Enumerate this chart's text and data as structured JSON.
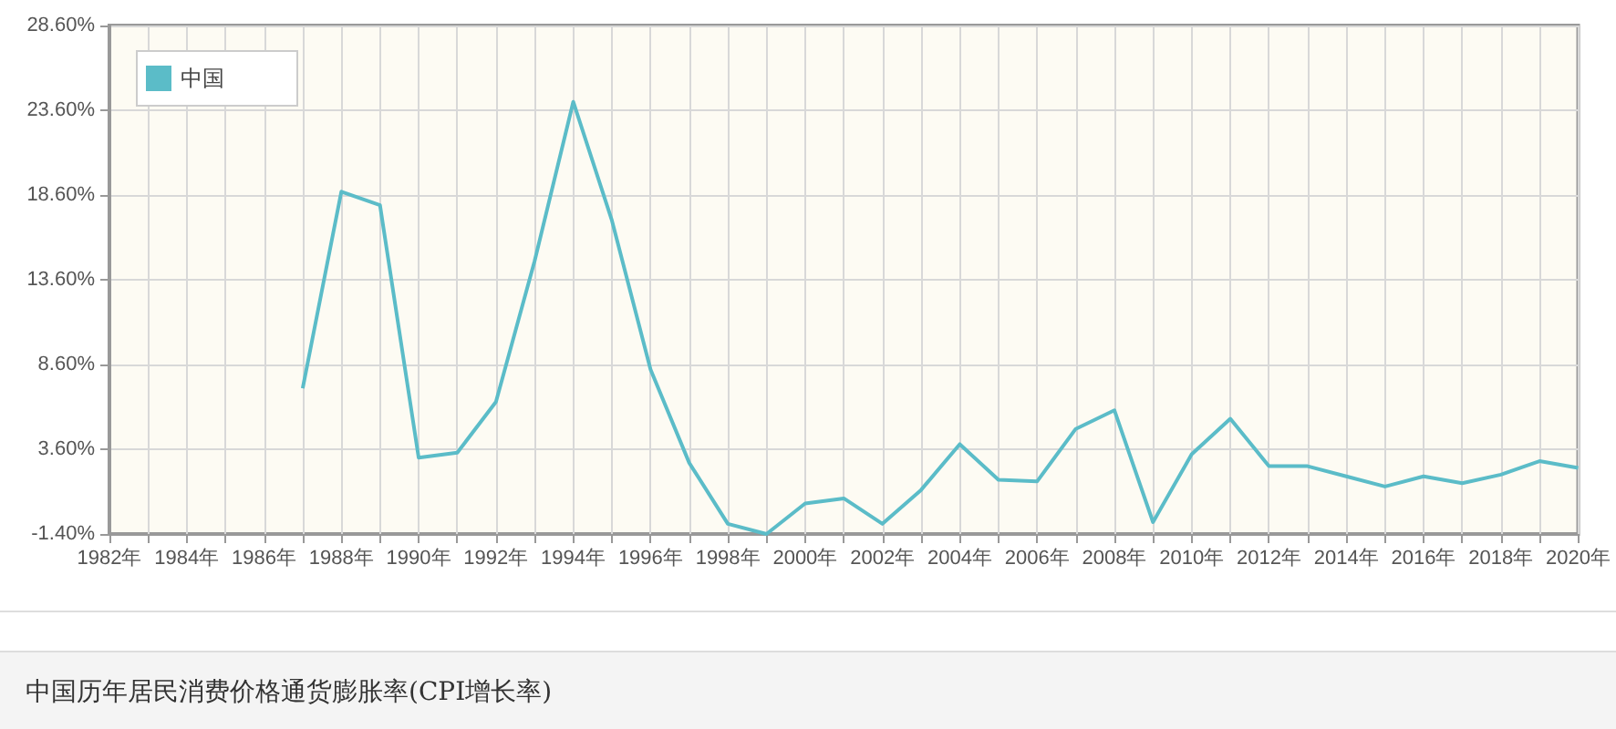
{
  "chart_data": {
    "type": "line",
    "title": "中国历年居民消费价格通货膨胀率(CPI增长率)",
    "x": [
      1987,
      1988,
      1989,
      1990,
      1991,
      1992,
      1993,
      1994,
      1995,
      1996,
      1997,
      1998,
      1999,
      2000,
      2001,
      2002,
      2003,
      2004,
      2005,
      2006,
      2007,
      2008,
      2009,
      2010,
      2011,
      2012,
      2013,
      2014,
      2015,
      2016,
      2017,
      2018,
      2019,
      2020
    ],
    "series": [
      {
        "name": "中国",
        "color": "#5bbcc8",
        "values": [
          7.2,
          18.8,
          18.0,
          3.1,
          3.4,
          6.4,
          14.7,
          24.1,
          17.1,
          8.3,
          2.8,
          -0.8,
          -1.4,
          0.4,
          0.7,
          -0.8,
          1.2,
          3.9,
          1.8,
          1.7,
          4.8,
          5.9,
          -0.7,
          3.3,
          5.4,
          2.6,
          2.6,
          2.0,
          1.4,
          2.0,
          1.6,
          2.1,
          2.9,
          2.5
        ]
      }
    ],
    "xlim": [
      1982,
      2020
    ],
    "xticks": [
      {
        "value": 1982,
        "label": "1982年"
      },
      {
        "value": 1983,
        "label": null
      },
      {
        "value": 1984,
        "label": "1984年"
      },
      {
        "value": 1985,
        "label": null
      },
      {
        "value": 1986,
        "label": "1986年"
      },
      {
        "value": 1987,
        "label": null
      },
      {
        "value": 1988,
        "label": "1988年"
      },
      {
        "value": 1989,
        "label": null
      },
      {
        "value": 1990,
        "label": "1990年"
      },
      {
        "value": 1991,
        "label": null
      },
      {
        "value": 1992,
        "label": "1992年"
      },
      {
        "value": 1993,
        "label": null
      },
      {
        "value": 1994,
        "label": "1994年"
      },
      {
        "value": 1995,
        "label": null
      },
      {
        "value": 1996,
        "label": "1996年"
      },
      {
        "value": 1997,
        "label": null
      },
      {
        "value": 1998,
        "label": "1998年"
      },
      {
        "value": 1999,
        "label": null
      },
      {
        "value": 2000,
        "label": "2000年"
      },
      {
        "value": 2001,
        "label": null
      },
      {
        "value": 2002,
        "label": "2002年"
      },
      {
        "value": 2003,
        "label": null
      },
      {
        "value": 2004,
        "label": "2004年"
      },
      {
        "value": 2005,
        "label": null
      },
      {
        "value": 2006,
        "label": "2006年"
      },
      {
        "value": 2007,
        "label": null
      },
      {
        "value": 2008,
        "label": "2008年"
      },
      {
        "value": 2009,
        "label": null
      },
      {
        "value": 2010,
        "label": "2010年"
      },
      {
        "value": 2011,
        "label": null
      },
      {
        "value": 2012,
        "label": "2012年"
      },
      {
        "value": 2013,
        "label": null
      },
      {
        "value": 2014,
        "label": "2014年"
      },
      {
        "value": 2015,
        "label": null
      },
      {
        "value": 2016,
        "label": "2016年"
      },
      {
        "value": 2017,
        "label": null
      },
      {
        "value": 2018,
        "label": "2018年"
      },
      {
        "value": 2019,
        "label": null
      },
      {
        "value": 2020,
        "label": "2020年"
      }
    ],
    "ylim": [
      -1.4,
      28.6
    ],
    "yticks": [
      {
        "value": -1.4,
        "label": "-1.40%"
      },
      {
        "value": 3.6,
        "label": "3.60%"
      },
      {
        "value": 8.6,
        "label": "8.60%"
      },
      {
        "value": 13.6,
        "label": "13.60%"
      },
      {
        "value": 18.6,
        "label": "18.60%"
      },
      {
        "value": 23.6,
        "label": "23.60%"
      },
      {
        "value": 28.6,
        "label": "28.60%"
      }
    ],
    "grid": true,
    "legend": "top left",
    "marker": "none"
  }
}
